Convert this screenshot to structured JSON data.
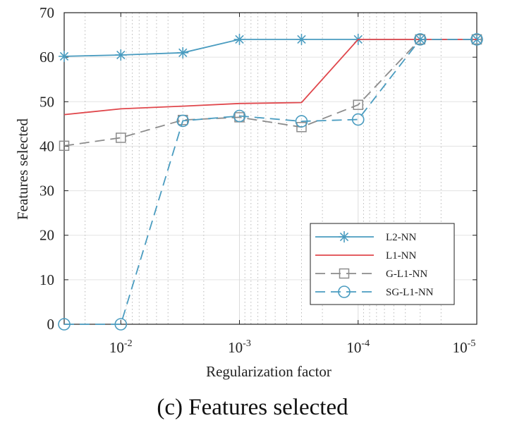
{
  "caption": "(c) Features selected",
  "chart_data": {
    "type": "line",
    "xlabel": "Regularization factor",
    "ylabel": "Features selected",
    "x_scale": "log",
    "x_reversed": true,
    "xlim": [
      0.03,
      1e-05
    ],
    "ylim": [
      0,
      70
    ],
    "y_ticks": [
      0,
      10,
      20,
      30,
      40,
      50,
      60,
      70
    ],
    "x_ticks": [
      {
        "value": 0.01,
        "base": "10",
        "exp": "-2"
      },
      {
        "value": 0.001,
        "base": "10",
        "exp": "-3"
      },
      {
        "value": 0.0001,
        "base": "10",
        "exp": "-4"
      },
      {
        "value": 1e-05,
        "base": "10",
        "exp": "-5"
      }
    ],
    "grid": true,
    "legend_position": "lower-right",
    "x": [
      0.03,
      0.01,
      0.003,
      0.001,
      0.0003,
      0.0001,
      3e-05,
      1e-05
    ],
    "series": [
      {
        "name": "L2-NN",
        "color": "#4a9cc0",
        "line": "solid",
        "marker": "asterisk",
        "values": [
          60.2,
          60.5,
          61,
          64,
          64,
          64,
          64,
          64
        ]
      },
      {
        "name": "L1-NN",
        "color": "#e0474c",
        "line": "solid",
        "marker": "none",
        "values": [
          47.1,
          48.4,
          49,
          49.6,
          49.8,
          64,
          64,
          64
        ]
      },
      {
        "name": "G-L1-NN",
        "color": "#8c8c8c",
        "line": "dashed",
        "marker": "square",
        "values": [
          40.1,
          41.9,
          45.9,
          46.5,
          44.3,
          49.3,
          64,
          64
        ]
      },
      {
        "name": "SG-L1-NN",
        "color": "#4a9cc0",
        "line": "dashed",
        "marker": "circle",
        "values": [
          0,
          0,
          45.7,
          46.8,
          45.6,
          46.0,
          64,
          64
        ]
      }
    ]
  }
}
